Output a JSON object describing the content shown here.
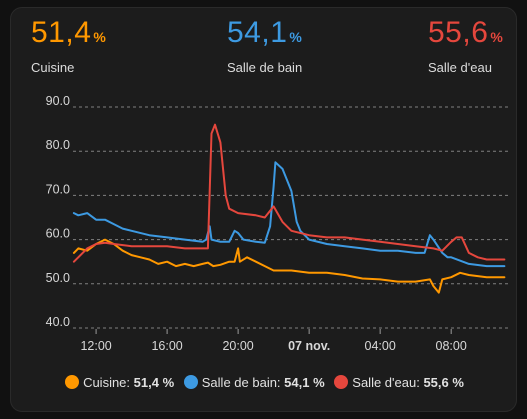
{
  "stats": [
    {
      "value": "51,4",
      "unit": "%",
      "name": "Cuisine",
      "color": "#ff9800"
    },
    {
      "value": "54,1",
      "unit": "%",
      "name": "Salle de bain",
      "color": "#3d9ae2"
    },
    {
      "value": "55,6",
      "unit": "%",
      "name": "Salle d'eau",
      "color": "#e5473d"
    }
  ],
  "legend": [
    {
      "label": "Cuisine:",
      "value": "51,4 %",
      "color": "#ff9800"
    },
    {
      "label": "Salle de bain:",
      "value": "54,1 %",
      "color": "#3d9ae2"
    },
    {
      "label": "Salle d'eau:",
      "value": "55,6 %",
      "color": "#e5473d"
    }
  ],
  "chart_data": {
    "type": "line",
    "ylim": [
      40,
      90
    ],
    "yticks": [
      "90.0",
      "80.0",
      "70.0",
      "60.0",
      "50.0",
      "40.0"
    ],
    "xlim": [
      10.7,
      35.2
    ],
    "xticks": [
      {
        "x": 12,
        "label": "12:00",
        "bold": false
      },
      {
        "x": 16,
        "label": "16:00",
        "bold": false
      },
      {
        "x": 20,
        "label": "20:00",
        "bold": false
      },
      {
        "x": 24,
        "label": "07 nov.",
        "bold": true
      },
      {
        "x": 28,
        "label": "04:00",
        "bold": false
      },
      {
        "x": 32,
        "label": "08:00",
        "bold": false
      }
    ],
    "grid": true,
    "series": [
      {
        "name": "Cuisine",
        "color": "#ff9800",
        "points": [
          [
            10.75,
            57
          ],
          [
            11,
            58
          ],
          [
            11.5,
            57.5
          ],
          [
            12,
            59
          ],
          [
            12.5,
            60
          ],
          [
            13,
            59
          ],
          [
            13.5,
            57.5
          ],
          [
            14,
            56.5
          ],
          [
            14.5,
            56
          ],
          [
            15,
            55.5
          ],
          [
            15.5,
            54.5
          ],
          [
            16,
            55
          ],
          [
            16.5,
            54
          ],
          [
            17,
            54.5
          ],
          [
            17.5,
            54
          ],
          [
            18,
            54.5
          ],
          [
            18.3,
            54.8
          ],
          [
            18.6,
            54
          ],
          [
            19,
            54.3
          ],
          [
            19.5,
            55
          ],
          [
            19.8,
            55
          ],
          [
            20,
            58
          ],
          [
            20.1,
            55
          ],
          [
            20.5,
            56
          ],
          [
            21,
            55
          ],
          [
            21.5,
            54
          ],
          [
            22,
            53
          ],
          [
            23,
            53
          ],
          [
            24,
            52.5
          ],
          [
            25,
            52.5
          ],
          [
            26,
            52
          ],
          [
            27,
            51.2
          ],
          [
            28,
            51
          ],
          [
            29,
            50.5
          ],
          [
            30,
            50.5
          ],
          [
            30.8,
            51
          ],
          [
            31,
            49.5
          ],
          [
            31.3,
            48
          ],
          [
            31.5,
            51
          ],
          [
            32,
            51.5
          ],
          [
            32.5,
            52.5
          ],
          [
            33,
            52
          ],
          [
            34,
            51.5
          ],
          [
            35,
            51.5
          ]
        ]
      },
      {
        "name": "Salle de bain",
        "color": "#3d9ae2",
        "points": [
          [
            10.75,
            66
          ],
          [
            11,
            65.5
          ],
          [
            11.5,
            66
          ],
          [
            12,
            64.5
          ],
          [
            12.5,
            64.5
          ],
          [
            13,
            63.5
          ],
          [
            13.5,
            62.5
          ],
          [
            14,
            62
          ],
          [
            15,
            61
          ],
          [
            16,
            60.5
          ],
          [
            17,
            60
          ],
          [
            18,
            59.5
          ],
          [
            18.2,
            60
          ],
          [
            18.4,
            63
          ],
          [
            18.5,
            60
          ],
          [
            19,
            59.5
          ],
          [
            19.5,
            59.5
          ],
          [
            19.8,
            62
          ],
          [
            20,
            61.5
          ],
          [
            20.3,
            60
          ],
          [
            21,
            59.5
          ],
          [
            21.5,
            59.3
          ],
          [
            21.8,
            63
          ],
          [
            22,
            72
          ],
          [
            22.1,
            77.5
          ],
          [
            22.5,
            76
          ],
          [
            23,
            71
          ],
          [
            23.3,
            64
          ],
          [
            23.5,
            62
          ],
          [
            24,
            60
          ],
          [
            25,
            59
          ],
          [
            26,
            58.5
          ],
          [
            27,
            58
          ],
          [
            28,
            57.5
          ],
          [
            29,
            57.5
          ],
          [
            30,
            57
          ],
          [
            30.5,
            57
          ],
          [
            30.8,
            61
          ],
          [
            31,
            60
          ],
          [
            31.5,
            57
          ],
          [
            31.8,
            56
          ],
          [
            32,
            56
          ],
          [
            33,
            54.5
          ],
          [
            34,
            54
          ],
          [
            35,
            54
          ]
        ]
      },
      {
        "name": "Salle d'eau",
        "color": "#e5473d",
        "points": [
          [
            10.75,
            55
          ],
          [
            11,
            56
          ],
          [
            11.5,
            58
          ],
          [
            12,
            59
          ],
          [
            12.5,
            59.3
          ],
          [
            13,
            59
          ],
          [
            14,
            58.5
          ],
          [
            15,
            58.5
          ],
          [
            16,
            58.5
          ],
          [
            17,
            58
          ],
          [
            18,
            58
          ],
          [
            18.3,
            58
          ],
          [
            18.5,
            84
          ],
          [
            18.7,
            86
          ],
          [
            19,
            82
          ],
          [
            19.3,
            70
          ],
          [
            19.5,
            67
          ],
          [
            20,
            66
          ],
          [
            21,
            65.5
          ],
          [
            21.5,
            65
          ],
          [
            22,
            67.5
          ],
          [
            22.5,
            64
          ],
          [
            23,
            62
          ],
          [
            24,
            61
          ],
          [
            25,
            60.5
          ],
          [
            26,
            60.5
          ],
          [
            27,
            60
          ],
          [
            28,
            59.5
          ],
          [
            29,
            59
          ],
          [
            30,
            58.5
          ],
          [
            31,
            58
          ],
          [
            31.5,
            57.5
          ],
          [
            32,
            59.5
          ],
          [
            32.3,
            60.5
          ],
          [
            32.6,
            60.5
          ],
          [
            33,
            57
          ],
          [
            33.5,
            56
          ],
          [
            34,
            55.5
          ],
          [
            35,
            55.5
          ]
        ]
      }
    ]
  }
}
